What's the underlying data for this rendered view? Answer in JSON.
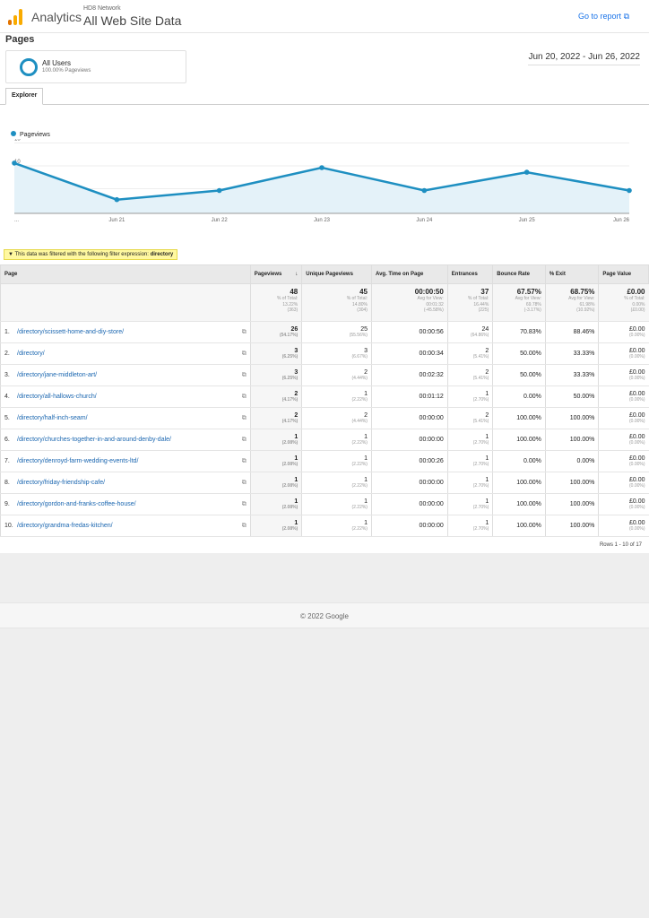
{
  "header": {
    "brand": "Analytics",
    "network": "HD8 Network",
    "property": "All Web Site Data",
    "go_to_report": "Go to report"
  },
  "page_title": "Pages",
  "segment": {
    "name": "All Users",
    "sub": "100.00% Pageviews"
  },
  "date_range": "Jun 20, 2022 - Jun 26, 2022",
  "tabs": [
    "Explorer"
  ],
  "chart_data": {
    "type": "line",
    "series": [
      {
        "name": "Pageviews",
        "values": [
          11,
          3,
          5,
          10,
          5,
          9,
          5
        ]
      }
    ],
    "x": [
      "Jun 20",
      "Jun 21",
      "Jun 22",
      "Jun 23",
      "Jun 24",
      "Jun 25",
      "Jun 26"
    ],
    "xtick_labels": [
      "...",
      "Jun 21",
      "Jun 22",
      "Jun 23",
      "Jun 24",
      "Jun 25",
      "Jun 26"
    ],
    "yticks": [
      "15",
      "10",
      "5"
    ],
    "ylim": [
      0,
      15
    ],
    "color": "#1e8fc1"
  },
  "filter": {
    "text": "This data was filtered with the following filter expression:",
    "expr": "directory"
  },
  "table": {
    "headers": [
      "Page",
      "Pageviews",
      "Unique Pageviews",
      "Avg. Time on Page",
      "Entrances",
      "Bounce Rate",
      "% Exit",
      "Page Value"
    ],
    "totals": [
      {
        "v": "48",
        "l1": "% of Total:",
        "l2": "13.22%",
        "l3": "(363)"
      },
      {
        "v": "45",
        "l1": "% of Total:",
        "l2": "14.80%",
        "l3": "(304)"
      },
      {
        "v": "00:00:50",
        "l1": "Avg for View:",
        "l2": "00:01:32",
        "l3": "(-45.58%)"
      },
      {
        "v": "37",
        "l1": "% of Total:",
        "l2": "16.44%",
        "l3": "(225)"
      },
      {
        "v": "67.57%",
        "l1": "Avg for View:",
        "l2": "69.78%",
        "l3": "(-3.17%)"
      },
      {
        "v": "68.75%",
        "l1": "Avg for View:",
        "l2": "61.98%",
        "l3": "(10.92%)"
      },
      {
        "v": "£0.00",
        "l1": "% of Total:",
        "l2": "0.00%",
        "l3": "(£0.00)"
      }
    ],
    "rows": [
      [
        "1.",
        "/directory/scissett-home-and-diy-store/",
        "26",
        "(54.17%)",
        "25",
        "(55.56%)",
        "00:00:56",
        "24",
        "(64.86%)",
        "70.83%",
        "88.46%",
        "£0.00",
        "(0.00%)"
      ],
      [
        "2.",
        "/directory/",
        "3",
        "(6.25%)",
        "3",
        "(6.67%)",
        "00:00:34",
        "2",
        "(5.41%)",
        "50.00%",
        "33.33%",
        "£0.00",
        "(0.00%)"
      ],
      [
        "3.",
        "/directory/jane-middleton-art/",
        "3",
        "(6.25%)",
        "2",
        "(4.44%)",
        "00:02:32",
        "2",
        "(5.41%)",
        "50.00%",
        "33.33%",
        "£0.00",
        "(0.00%)"
      ],
      [
        "4.",
        "/directory/all-hallows-church/",
        "2",
        "(4.17%)",
        "1",
        "(2.22%)",
        "00:01:12",
        "1",
        "(2.70%)",
        "0.00%",
        "50.00%",
        "£0.00",
        "(0.00%)"
      ],
      [
        "5.",
        "/directory/half-inch-seam/",
        "2",
        "(4.17%)",
        "2",
        "(4.44%)",
        "00:00:00",
        "2",
        "(5.41%)",
        "100.00%",
        "100.00%",
        "£0.00",
        "(0.00%)"
      ],
      [
        "6.",
        "/directory/churches-together-in-and-around-denby-dale/",
        "1",
        "(2.08%)",
        "1",
        "(2.22%)",
        "00:00:00",
        "1",
        "(2.70%)",
        "100.00%",
        "100.00%",
        "£0.00",
        "(0.00%)"
      ],
      [
        "7.",
        "/directory/denroyd-farm-wedding-events-ltd/",
        "1",
        "(2.08%)",
        "1",
        "(2.22%)",
        "00:00:26",
        "1",
        "(2.70%)",
        "0.00%",
        "0.00%",
        "£0.00",
        "(0.00%)"
      ],
      [
        "8.",
        "/directory/friday-friendship-cafe/",
        "1",
        "(2.08%)",
        "1",
        "(2.22%)",
        "00:00:00",
        "1",
        "(2.70%)",
        "100.00%",
        "100.00%",
        "£0.00",
        "(0.00%)"
      ],
      [
        "9.",
        "/directory/gordon-and-franks-coffee-house/",
        "1",
        "(2.08%)",
        "1",
        "(2.22%)",
        "00:00:00",
        "1",
        "(2.70%)",
        "100.00%",
        "100.00%",
        "£0.00",
        "(0.00%)"
      ],
      [
        "10.",
        "/directory/grandma-fredas-kitchen/",
        "1",
        "(2.08%)",
        "1",
        "(2.22%)",
        "00:00:00",
        "1",
        "(2.70%)",
        "100.00%",
        "100.00%",
        "£0.00",
        "(0.00%)"
      ]
    ],
    "rows_info": "Rows 1 - 10 of 17"
  },
  "footer": "© 2022 Google"
}
